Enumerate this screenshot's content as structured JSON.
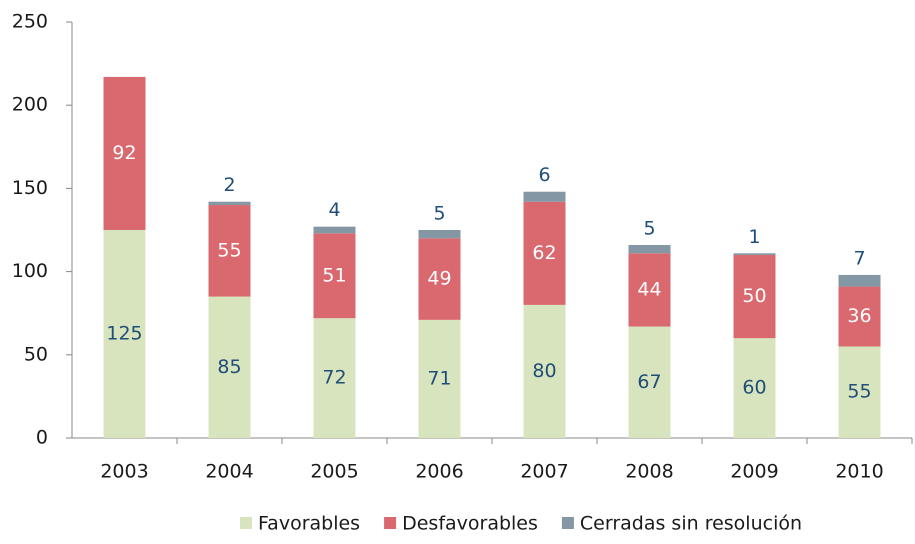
{
  "chart_data": {
    "type": "stacked_bar",
    "categories": [
      "2003",
      "2004",
      "2005",
      "2006",
      "2007",
      "2008",
      "2009",
      "2010"
    ],
    "series": [
      {
        "name": "Favorables",
        "color": "#d7e4bd",
        "values": [
          125,
          85,
          72,
          71,
          80,
          67,
          60,
          55
        ]
      },
      {
        "name": "Desfavorables",
        "color": "#d9686f",
        "values": [
          92,
          55,
          51,
          49,
          62,
          44,
          50,
          36
        ]
      },
      {
        "name": "Cerradas sin resolución",
        "color": "#8497a4",
        "values": [
          0,
          2,
          4,
          5,
          6,
          5,
          1,
          7
        ],
        "value_labels": [
          null,
          "2",
          "4",
          "5",
          "6",
          "5",
          "1",
          "7"
        ]
      }
    ],
    "ylim": [
      0,
      250
    ],
    "yticks": [
      0,
      50,
      100,
      150,
      200,
      250
    ],
    "grid": false,
    "legend": "bottom"
  }
}
